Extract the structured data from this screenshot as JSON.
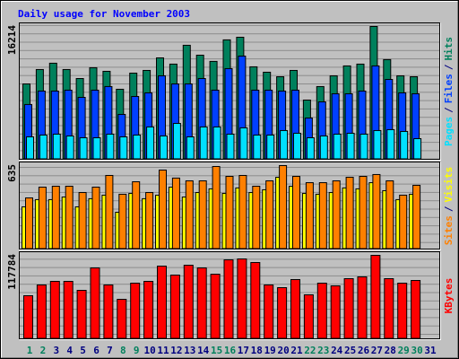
{
  "chart_data": [
    {
      "type": "bar",
      "title": "Daily usage for November 2003",
      "legend_separator": "/",
      "series": [
        {
          "name": "Pages",
          "color": "#00e0ff",
          "values": [
            2740,
            2960,
            3070,
            2850,
            2630,
            2630,
            3070,
            2740,
            2960,
            3950,
            2850,
            4380,
            2740,
            3950,
            3950,
            3070,
            3840,
            2960,
            2960,
            3510,
            3180,
            2630,
            2850,
            3070,
            3180,
            3070,
            3510,
            3620,
            3400,
            2520,
            null
          ]
        },
        {
          "name": "Files",
          "color": "#0040ff",
          "values": [
            6690,
            8330,
            8330,
            8440,
            7560,
            8440,
            8880,
            5480,
            7670,
            8110,
            10190,
            9200,
            9200,
            9860,
            8440,
            11070,
            12600,
            8440,
            8440,
            8330,
            8440,
            5040,
            7010,
            8000,
            8000,
            8330,
            11400,
            9750,
            8110,
            8000,
            null
          ]
        },
        {
          "name": "Hits",
          "color": "#00805c",
          "values": [
            9200,
            10960,
            11730,
            10960,
            9860,
            11180,
            10740,
            8550,
            10520,
            10850,
            12380,
            11620,
            13920,
            12710,
            11950,
            14580,
            14900,
            11290,
            10630,
            10080,
            10850,
            7230,
            8880,
            10190,
            11400,
            11620,
            16214,
            12170,
            10190,
            10080,
            null
          ]
        }
      ],
      "ylim": [
        0,
        16214
      ],
      "yticks": [
        16214
      ]
    },
    {
      "type": "bar",
      "legend_separator": "/",
      "series": [
        {
          "name": "Sites",
          "color": "#ff8000",
          "values": [
            389,
            471,
            478,
            478,
            430,
            471,
            560,
            417,
            512,
            430,
            601,
            540,
            519,
            519,
            628,
            553,
            560,
            478,
            519,
            635,
            553,
            505,
            505,
            519,
            546,
            553,
            567,
            519,
            410,
            485,
            null
          ]
        },
        {
          "name": "Visits",
          "color": "#ffff00",
          "values": [
            321,
            376,
            376,
            396,
            321,
            383,
            410,
            280,
            423,
            383,
            410,
            471,
            396,
            430,
            458,
            423,
            465,
            430,
            451,
            546,
            478,
            423,
            417,
            430,
            465,
            458,
            505,
            444,
            376,
            417,
            null
          ]
        }
      ],
      "ylim": [
        0,
        635
      ],
      "yticks": [
        635
      ]
    },
    {
      "type": "bar",
      "series": [
        {
          "name": "KBytes",
          "color": "#ff0000",
          "values": [
            60790,
            75990,
            81060,
            81060,
            68390,
            100050,
            75990,
            55730,
            78520,
            81060,
            102590,
            89920,
            103850,
            100050,
            91190,
            111450,
            112720,
            107650,
            75990,
            72190,
            83590,
            62060,
            78520,
            74720,
            84860,
            87390,
            117784,
            84860,
            78520,
            82320,
            null
          ]
        }
      ],
      "ylim": [
        0,
        117784
      ],
      "yticks": [
        117784
      ],
      "categories": [
        "1",
        "2",
        "3",
        "4",
        "5",
        "6",
        "7",
        "8",
        "9",
        "10",
        "11",
        "12",
        "13",
        "14",
        "15",
        "16",
        "17",
        "18",
        "19",
        "20",
        "21",
        "22",
        "23",
        "24",
        "25",
        "26",
        "27",
        "28",
        "29",
        "30",
        "31"
      ],
      "category_colors": [
        "#00805c",
        "#00805c",
        "#000080",
        "#000080",
        "#000080",
        "#000080",
        "#000080",
        "#00805c",
        "#00805c",
        "#000080",
        "#000080",
        "#000080",
        "#000080",
        "#000080",
        "#00805c",
        "#00805c",
        "#000080",
        "#000080",
        "#000080",
        "#000080",
        "#000080",
        "#00805c",
        "#00805c",
        "#000080",
        "#000080",
        "#000080",
        "#000080",
        "#000080",
        "#00805c",
        "#00805c",
        "#000080"
      ]
    }
  ]
}
